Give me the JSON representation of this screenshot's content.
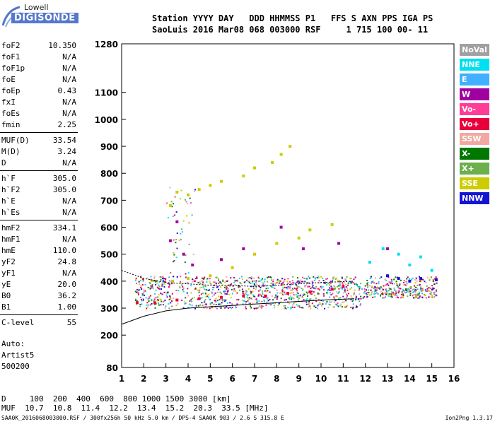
{
  "logo": {
    "brand": "Lowell",
    "product": "DIGISONDE"
  },
  "header": {
    "line1": "Station YYYY DAY   DDD HHMMSS P1   FFS S AXN PPS IGA PS",
    "line2": "SaoLuis 2016 Mar08 068 003000 RSF     1 715 100 00- 11"
  },
  "params": {
    "g1": [
      {
        "label": "foF2",
        "value": "10.350"
      },
      {
        "label": "foF1",
        "value": "N/A"
      },
      {
        "label": "foF1p",
        "value": "N/A"
      },
      {
        "label": "foE",
        "value": "N/A"
      },
      {
        "label": "foEp",
        "value": "0.43"
      },
      {
        "label": "fxI",
        "value": "N/A"
      },
      {
        "label": "foEs",
        "value": "N/A"
      },
      {
        "label": "fmin",
        "value": "2.25"
      }
    ],
    "g2": [
      {
        "label": "MUF(D)",
        "value": "33.54"
      },
      {
        "label": "M(D)",
        "value": "3.24"
      },
      {
        "label": "D",
        "value": "N/A"
      }
    ],
    "g3": [
      {
        "label": "h`F",
        "value": "305.0"
      },
      {
        "label": "h`F2",
        "value": "305.0"
      },
      {
        "label": "h`E",
        "value": "N/A"
      },
      {
        "label": "h`Es",
        "value": "N/A"
      }
    ],
    "g4": [
      {
        "label": "hmF2",
        "value": "334.1"
      },
      {
        "label": "hmF1",
        "value": "N/A"
      },
      {
        "label": "hmE",
        "value": "110.0"
      },
      {
        "label": "yF2",
        "value": "24.8"
      },
      {
        "label": "yF1",
        "value": "N/A"
      },
      {
        "label": "yE",
        "value": "20.0"
      },
      {
        "label": "B0",
        "value": "36.2"
      },
      {
        "label": "B1",
        "value": "1.00"
      }
    ],
    "g5": [
      {
        "label": "C-level",
        "value": "55"
      }
    ]
  },
  "auto": {
    "line1": "Auto:",
    "line2": "Artist5",
    "line3": "500200"
  },
  "legend": [
    {
      "label": "NoVal",
      "color": "#a0a0a0"
    },
    {
      "label": "NNE",
      "color": "#00e0f0"
    },
    {
      "label": "E",
      "color": "#40b0ff"
    },
    {
      "label": "W",
      "color": "#a000a0"
    },
    {
      "label": "Vo-",
      "color": "#ff3c96"
    },
    {
      "label": "Vo+",
      "color": "#e8003c"
    },
    {
      "label": "SSW",
      "color": "#f0a8a0"
    },
    {
      "label": "X-",
      "color": "#007800"
    },
    {
      "label": "X+",
      "color": "#6cb04c"
    },
    {
      "label": "SSE",
      "color": "#cccc00"
    },
    {
      "label": "NNW",
      "color": "#1414d2"
    }
  ],
  "chart_data": {
    "type": "scatter",
    "xlim": [
      1,
      16
    ],
    "ylim": [
      80,
      1280
    ],
    "x_ticks": [
      1,
      2,
      3,
      4,
      5,
      6,
      7,
      8,
      9,
      10,
      11,
      12,
      13,
      14,
      15,
      16
    ],
    "y_ticks": [
      80,
      200,
      300,
      400,
      500,
      600,
      700,
      800,
      900,
      1000,
      1100,
      1280
    ],
    "grid": false,
    "legend_position": "right",
    "series": [
      {
        "name": "SSE",
        "points": [
          [
            3.2,
            680
          ],
          [
            3.5,
            730
          ],
          [
            4.0,
            720
          ],
          [
            4.5,
            740
          ],
          [
            5.0,
            755
          ],
          [
            5.5,
            770
          ],
          [
            6.5,
            790
          ],
          [
            7.0,
            820
          ],
          [
            7.8,
            840
          ],
          [
            8.2,
            870
          ],
          [
            8.6,
            900
          ],
          [
            3.3,
            400
          ],
          [
            4.0,
            410
          ],
          [
            5.0,
            420
          ],
          [
            6.0,
            450
          ],
          [
            7.0,
            500
          ],
          [
            8.0,
            540
          ],
          [
            9.0,
            560
          ],
          [
            9.5,
            590
          ],
          [
            10.5,
            610
          ]
        ]
      },
      {
        "name": "Vo+",
        "points": [
          [
            1.7,
            320
          ],
          [
            2.5,
            320
          ],
          [
            3.5,
            330
          ],
          [
            4.5,
            335
          ],
          [
            5.5,
            340
          ],
          [
            6.5,
            345
          ],
          [
            7.5,
            345
          ],
          [
            8.5,
            355
          ],
          [
            9.5,
            360
          ],
          [
            10.5,
            370
          ],
          [
            11.0,
            380
          ]
        ]
      },
      {
        "name": "W",
        "points": [
          [
            3.2,
            550
          ],
          [
            3.5,
            620
          ],
          [
            3.8,
            500
          ],
          [
            4.2,
            460
          ],
          [
            5.5,
            480
          ],
          [
            6.5,
            520
          ],
          [
            8.2,
            600
          ],
          [
            9.2,
            520
          ],
          [
            10.8,
            540
          ],
          [
            13.0,
            520
          ]
        ]
      },
      {
        "name": "NNE",
        "points": [
          [
            12.2,
            470
          ],
          [
            12.8,
            520
          ],
          [
            13.5,
            500
          ],
          [
            14.0,
            460
          ],
          [
            14.5,
            490
          ],
          [
            15.0,
            440
          ]
        ]
      },
      {
        "name": "NNW",
        "points": [
          [
            13.0,
            420
          ],
          [
            13.5,
            410
          ],
          [
            14.0,
            400
          ],
          [
            14.5,
            410
          ],
          [
            15.2,
            405
          ]
        ]
      }
    ],
    "trace_curve": {
      "x": [
        1.0,
        2.0,
        3.0,
        4.0,
        5.0,
        6.0,
        7.0,
        8.0,
        9.0,
        10.0,
        11.5
      ],
      "y": [
        240,
        270,
        290,
        300,
        305,
        310,
        315,
        320,
        325,
        330,
        335
      ]
    },
    "echo_trace": {
      "x": [
        1.0,
        2.0,
        3.0,
        4.0,
        5.0,
        6.0,
        7.0,
        8.0,
        9.0,
        10.0,
        11.5
      ],
      "y": [
        440,
        410,
        395,
        390,
        385,
        385,
        380,
        385,
        390,
        395,
        400
      ]
    }
  },
  "bottom": {
    "d_row": "D     100  200  400  600  800 1000 1500 3000 [km]",
    "muf_row": "MUF  10.7  10.8  11.4  12.2  13.4  15.2  20.3  33.5 [MHz]"
  },
  "footer": "SAA0K_2016068003000.RSF / 300fx256h 50 kHz 5.0 km / DPS-4 SAA0K 903 / 2.6 S 315.8 E",
  "version": "Ion2Png 1.3.17"
}
